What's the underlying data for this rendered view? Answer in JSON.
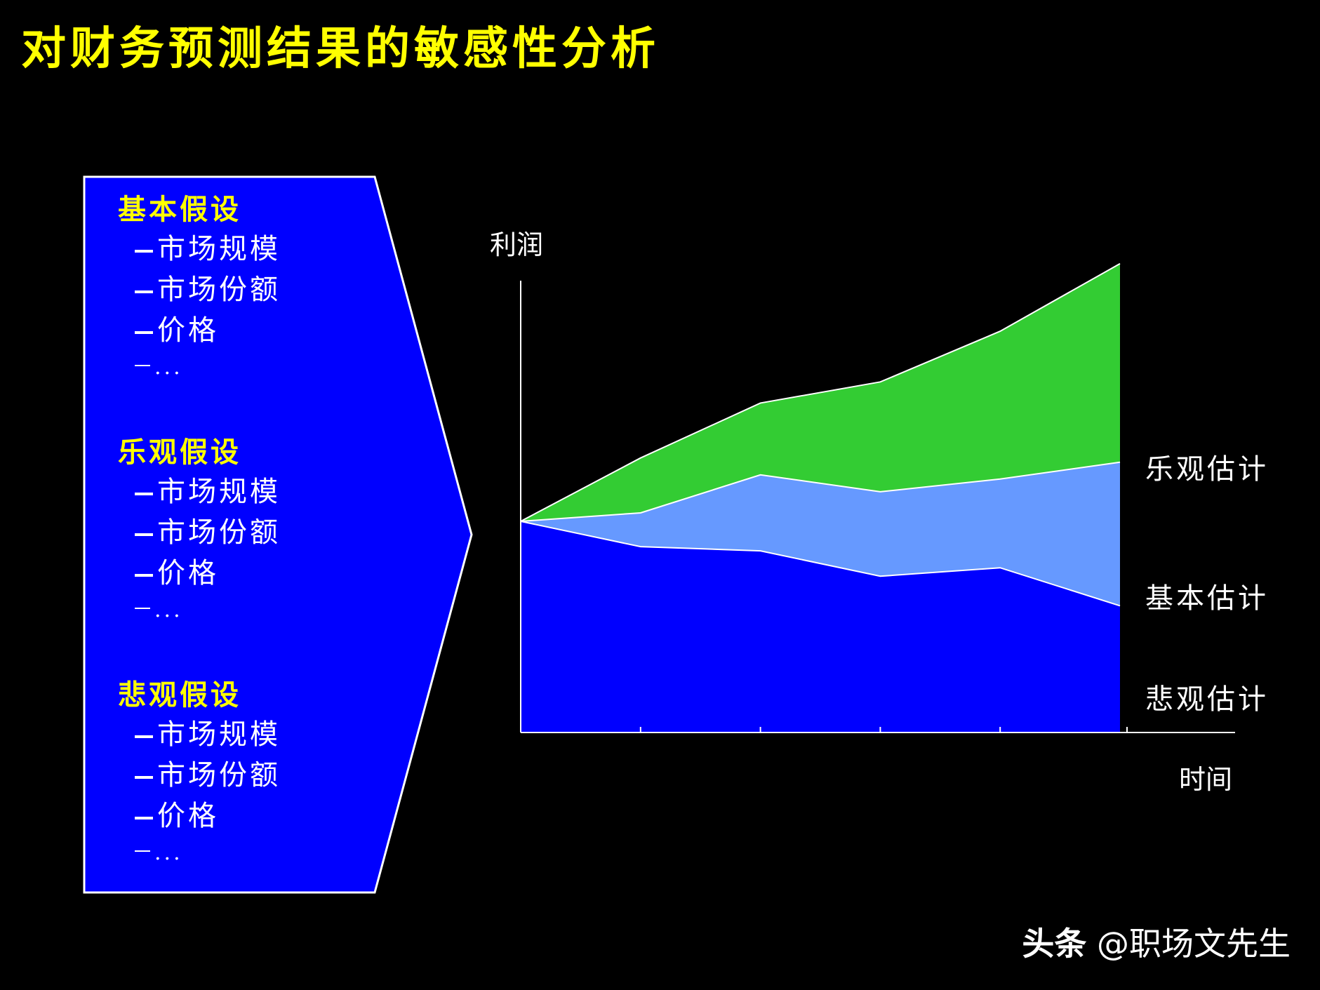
{
  "title": "对财务预测结果的敏感性分析",
  "panel": {
    "groups": [
      {
        "heading": "基本假设",
        "items": [
          "市场规模",
          "市场份额",
          "价格",
          "..."
        ]
      },
      {
        "heading": "乐观假设",
        "items": [
          "市场规模",
          "市场份额",
          "价格",
          "..."
        ]
      },
      {
        "heading": "悲观假设",
        "items": [
          "市场规模",
          "市场份额",
          "价格",
          "..."
        ]
      }
    ]
  },
  "colors": {
    "title": "#ffff00",
    "panel_fill": "#0000ff",
    "optimistic": "#33cc33",
    "base": "#6699ff",
    "pessimistic": "#0000ff",
    "background": "#000000"
  },
  "chart_data": {
    "type": "area",
    "ylabel": "利润",
    "xlabel": "时间",
    "x": [
      0,
      1,
      2,
      3,
      4,
      5
    ],
    "ylim": [
      0,
      100
    ],
    "grid": false,
    "series": [
      {
        "name": "悲观估计",
        "values": [
          50,
          44,
          43,
          37,
          39,
          30
        ]
      },
      {
        "name": "基本估计",
        "values": [
          50,
          52,
          61,
          57,
          60,
          64
        ]
      },
      {
        "name": "乐观估计",
        "values": [
          50,
          65,
          78,
          83,
          95,
          111
        ]
      }
    ]
  },
  "watermark": {
    "brand": "头条",
    "handle": "@职场文先生"
  }
}
